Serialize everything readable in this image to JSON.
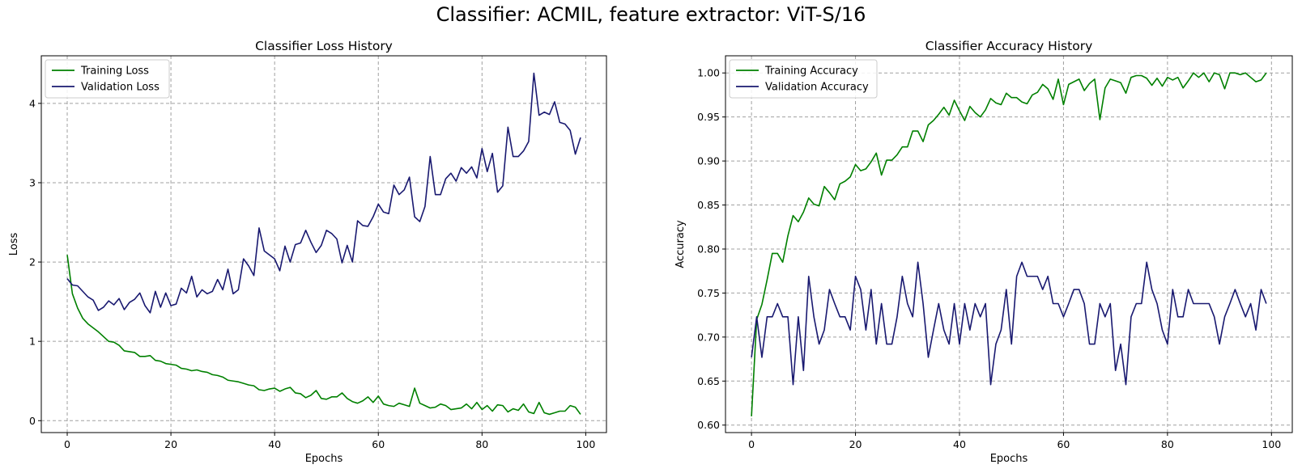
{
  "suptitle": "Classifier: ACMIL, feature extractor: ViT-S/16",
  "colors": {
    "training": "#008000",
    "validation": "#191970",
    "grid": "#a0a0a0"
  },
  "chart_data": [
    {
      "type": "line",
      "title": "Classifier Loss History",
      "xlabel": "Epochs",
      "ylabel": "Loss",
      "xlim": [
        -5,
        104
      ],
      "ylim": [
        -0.15,
        4.6
      ],
      "xticks": [
        0,
        20,
        40,
        60,
        80,
        100
      ],
      "yticks": [
        0,
        1,
        2,
        3,
        4
      ],
      "ytick_labels": [
        "0",
        "1",
        "2",
        "3",
        "4"
      ],
      "grid": true,
      "legend_position": "upper left",
      "series": [
        {
          "name": "Training Loss",
          "color": "#008000",
          "values": [
            2.09,
            1.6,
            1.42,
            1.29,
            1.22,
            1.17,
            1.12,
            1.06,
            1.0,
            0.99,
            0.95,
            0.88,
            0.87,
            0.86,
            0.81,
            0.81,
            0.82,
            0.76,
            0.75,
            0.72,
            0.71,
            0.7,
            0.66,
            0.65,
            0.63,
            0.64,
            0.62,
            0.61,
            0.58,
            0.57,
            0.55,
            0.51,
            0.5,
            0.49,
            0.47,
            0.45,
            0.44,
            0.39,
            0.38,
            0.4,
            0.41,
            0.37,
            0.4,
            0.42,
            0.35,
            0.34,
            0.29,
            0.32,
            0.38,
            0.28,
            0.27,
            0.3,
            0.3,
            0.35,
            0.28,
            0.24,
            0.22,
            0.25,
            0.3,
            0.23,
            0.31,
            0.21,
            0.19,
            0.18,
            0.22,
            0.2,
            0.18,
            0.41,
            0.22,
            0.19,
            0.16,
            0.17,
            0.21,
            0.19,
            0.14,
            0.15,
            0.16,
            0.21,
            0.15,
            0.23,
            0.14,
            0.19,
            0.12,
            0.2,
            0.19,
            0.11,
            0.15,
            0.13,
            0.21,
            0.11,
            0.09,
            0.23,
            0.1,
            0.08,
            0.1,
            0.12,
            0.12,
            0.19,
            0.17,
            0.08
          ]
        },
        {
          "name": "Validation Loss",
          "color": "#191970",
          "values": [
            1.79,
            1.71,
            1.7,
            1.63,
            1.56,
            1.52,
            1.39,
            1.43,
            1.51,
            1.46,
            1.54,
            1.4,
            1.49,
            1.53,
            1.61,
            1.45,
            1.36,
            1.63,
            1.43,
            1.61,
            1.45,
            1.47,
            1.67,
            1.61,
            1.82,
            1.56,
            1.65,
            1.6,
            1.63,
            1.78,
            1.65,
            1.91,
            1.6,
            1.65,
            2.04,
            1.95,
            1.83,
            2.43,
            2.14,
            2.09,
            2.04,
            1.89,
            2.2,
            2.0,
            2.22,
            2.24,
            2.4,
            2.25,
            2.12,
            2.21,
            2.4,
            2.36,
            2.29,
            1.99,
            2.21,
            2.0,
            2.52,
            2.46,
            2.45,
            2.57,
            2.73,
            2.63,
            2.61,
            2.97,
            2.85,
            2.91,
            3.07,
            2.57,
            2.51,
            2.7,
            3.33,
            2.85,
            2.85,
            3.05,
            3.12,
            3.02,
            3.19,
            3.12,
            3.2,
            3.06,
            3.43,
            3.14,
            3.37,
            2.88,
            2.96,
            3.7,
            3.33,
            3.33,
            3.4,
            3.52,
            4.38,
            3.85,
            3.89,
            3.86,
            4.02,
            3.76,
            3.74,
            3.66,
            3.36,
            3.57
          ]
        }
      ]
    },
    {
      "type": "line",
      "title": "Classifier Accuracy History",
      "xlabel": "Epochs",
      "ylabel": "Accuracy",
      "xlim": [
        -5,
        104
      ],
      "ylim": [
        0.5915,
        1.0195
      ],
      "xticks": [
        0,
        20,
        40,
        60,
        80,
        100
      ],
      "yticks": [
        0.6,
        0.65,
        0.7,
        0.75,
        0.8,
        0.85,
        0.9,
        0.95,
        1.0
      ],
      "ytick_labels": [
        "0.60",
        "0.65",
        "0.70",
        "0.75",
        "0.80",
        "0.85",
        "0.90",
        "0.95",
        "1.00"
      ],
      "grid": true,
      "legend_position": "upper left",
      "series": [
        {
          "name": "Training Accuracy",
          "color": "#008000",
          "values": [
            0.61,
            0.72,
            0.737,
            0.765,
            0.795,
            0.795,
            0.785,
            0.815,
            0.838,
            0.831,
            0.842,
            0.858,
            0.851,
            0.849,
            0.871,
            0.864,
            0.856,
            0.874,
            0.877,
            0.882,
            0.896,
            0.889,
            0.891,
            0.899,
            0.909,
            0.884,
            0.901,
            0.901,
            0.907,
            0.916,
            0.916,
            0.934,
            0.934,
            0.922,
            0.941,
            0.946,
            0.953,
            0.961,
            0.952,
            0.969,
            0.957,
            0.946,
            0.962,
            0.955,
            0.95,
            0.958,
            0.971,
            0.966,
            0.964,
            0.977,
            0.972,
            0.972,
            0.967,
            0.965,
            0.975,
            0.978,
            0.987,
            0.982,
            0.97,
            0.993,
            0.964,
            0.987,
            0.99,
            0.993,
            0.98,
            0.988,
            0.993,
            0.947,
            0.983,
            0.993,
            0.991,
            0.989,
            0.977,
            0.995,
            0.997,
            0.997,
            0.994,
            0.986,
            0.994,
            0.985,
            0.995,
            0.992,
            0.995,
            0.983,
            0.991,
            1.0,
            0.995,
            1.0,
            0.99,
            1.0,
            0.998,
            0.982,
            1.0,
            1.0,
            0.998,
            1.0,
            0.995,
            0.99,
            0.992,
            1.0
          ]
        },
        {
          "name": "Validation Accuracy",
          "color": "#191970",
          "values": [
            0.677,
            0.723,
            0.677,
            0.723,
            0.723,
            0.738,
            0.723,
            0.723,
            0.646,
            0.723,
            0.662,
            0.769,
            0.723,
            0.692,
            0.708,
            0.754,
            0.738,
            0.723,
            0.723,
            0.708,
            0.769,
            0.754,
            0.708,
            0.754,
            0.692,
            0.738,
            0.692,
            0.692,
            0.723,
            0.769,
            0.738,
            0.723,
            0.785,
            0.738,
            0.677,
            0.708,
            0.738,
            0.708,
            0.692,
            0.738,
            0.692,
            0.738,
            0.708,
            0.738,
            0.723,
            0.738,
            0.646,
            0.692,
            0.708,
            0.754,
            0.692,
            0.769,
            0.785,
            0.769,
            0.769,
            0.769,
            0.754,
            0.769,
            0.738,
            0.738,
            0.723,
            0.738,
            0.754,
            0.754,
            0.738,
            0.692,
            0.692,
            0.738,
            0.723,
            0.738,
            0.662,
            0.692,
            0.646,
            0.723,
            0.738,
            0.738,
            0.785,
            0.754,
            0.738,
            0.708,
            0.692,
            0.754,
            0.723,
            0.723,
            0.754,
            0.738,
            0.738,
            0.738,
            0.738,
            0.723,
            0.692,
            0.723,
            0.738,
            0.754,
            0.738,
            0.723,
            0.738,
            0.708,
            0.754,
            0.738
          ]
        }
      ]
    }
  ]
}
